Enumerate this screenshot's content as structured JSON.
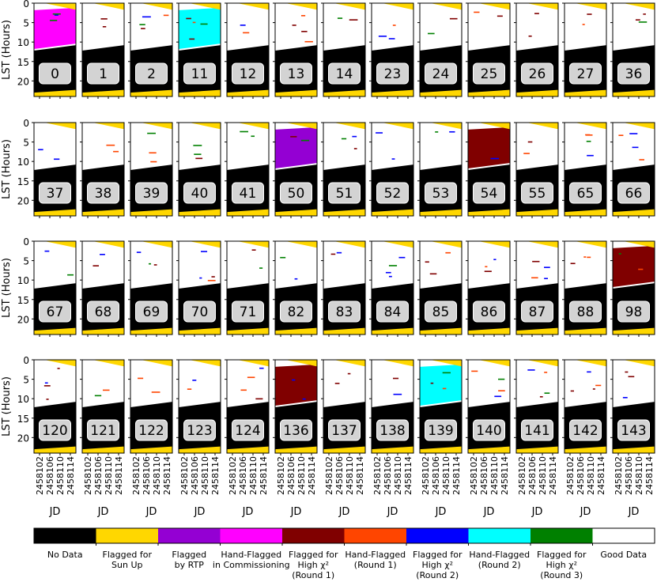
{
  "chart_data": {
    "type": "heatmap",
    "y_label": "LST (Hours)",
    "x_label": "JD",
    "y_ticks": [
      0,
      5,
      10,
      15,
      20
    ],
    "x_ticks": [
      "2458102",
      "2458106",
      "2458110",
      "2458114"
    ],
    "grid": false,
    "legend_placement": "bottom",
    "rows": [
      [
        "0",
        "1",
        "2",
        "11",
        "12",
        "13",
        "14",
        "23",
        "24",
        "25",
        "26",
        "27",
        "36"
      ],
      [
        "37",
        "38",
        "39",
        "40",
        "41",
        "50",
        "51",
        "52",
        "53",
        "54",
        "55",
        "65",
        "66"
      ],
      [
        "67",
        "68",
        "69",
        "70",
        "71",
        "82",
        "83",
        "84",
        "85",
        "86",
        "87",
        "88",
        "98"
      ],
      [
        "120",
        "121",
        "122",
        "123",
        "124",
        "136",
        "137",
        "138",
        "139",
        "140",
        "141",
        "142",
        "143"
      ]
    ],
    "panel_fill": {
      "0": "Hand-Flagged in Commissioning",
      "11": "Hand-Flagged (Round 2)",
      "50": "Flagged by RTP",
      "54": "Flagged for High χ² (Round 1)",
      "98": "Flagged for High χ² (Round 1)",
      "136": "Flagged for High χ² (Round 1)",
      "139": "Hand-Flagged (Round 2)"
    },
    "legend": [
      {
        "label": "No Data",
        "color": "#000000"
      },
      {
        "label": "Flagged for Sun Up",
        "color": "#ffd700"
      },
      {
        "label": "Flagged by RTP",
        "color": "#9400d3"
      },
      {
        "label": "Hand-Flagged in Commissioning",
        "color": "#ff00ff"
      },
      {
        "label": "Flagged for High χ² (Round 1)",
        "color": "#800000"
      },
      {
        "label": "Hand-Flagged (Round 1)",
        "color": "#ff4500"
      },
      {
        "label": "Flagged for High χ² (Round 2)",
        "color": "#0000ff"
      },
      {
        "label": "Hand-Flagged (Round 2)",
        "color": "#00ffff"
      },
      {
        "label": "Flagged for High χ² (Round 3)",
        "color": "#008000"
      },
      {
        "label": "Good Data",
        "color": "#ffffff"
      }
    ]
  }
}
